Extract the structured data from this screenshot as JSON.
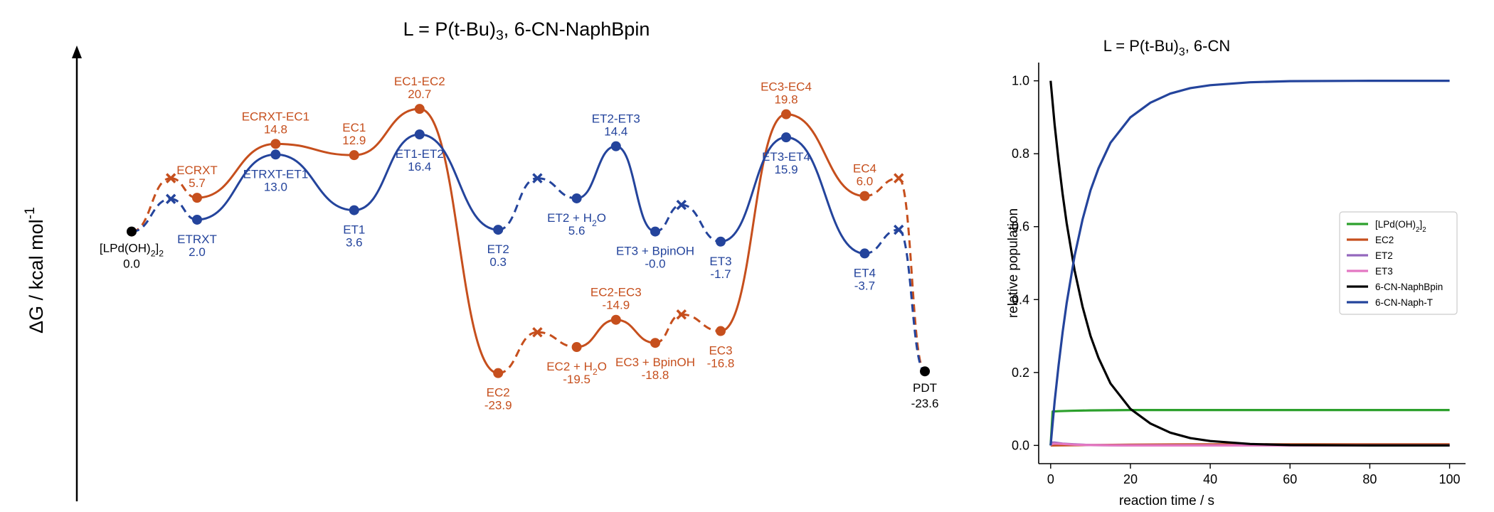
{
  "chart_data": [
    {
      "type": "line",
      "subtype": "energy-profile",
      "title": "L = P(t-Bu)3, 6-CN-NaphBpin",
      "title_parts": [
        "L = P(t-Bu)",
        "3",
        ", 6-CN-NaphBpin"
      ],
      "ylabel": "ΔG / kcal mol",
      "ylabel_sup": "-1",
      "ylim": [
        -35,
        30
      ],
      "x_axis_visible": false,
      "colors": {
        "EC": "#c64f1d",
        "ET": "#24449c",
        "common": "#000000"
      },
      "common_points": [
        {
          "x": 0,
          "y": 0.0,
          "label": "[LPd(OH)",
          "label_sub": "2",
          "label_tail": "]",
          "label_sub2": "2",
          "value_label": "0.0"
        },
        {
          "x": 30.3,
          "y": -23.6,
          "label": "PDT",
          "value_label": "-23.6"
        }
      ],
      "series": [
        {
          "name": "EC",
          "color": "#c64f1d",
          "states": [
            {
              "x": 2.5,
              "y": 5.7,
              "label": "ECRXT",
              "value_label": "5.7",
              "label_pos": "above"
            },
            {
              "x": 5.5,
              "y": 14.8,
              "label": "ECRXT-EC1",
              "value_label": "14.8",
              "label_pos": "above"
            },
            {
              "x": 8.5,
              "y": 12.9,
              "label": "EC1",
              "value_label": "12.9",
              "label_pos": "above"
            },
            {
              "x": 11.0,
              "y": 20.7,
              "label": "EC1-EC2",
              "value_label": "20.7",
              "label_pos": "above"
            },
            {
              "x": 14.0,
              "y": -23.9,
              "label": "EC2",
              "value_label": "-23.9",
              "label_pos": "below"
            },
            {
              "x": 17.0,
              "y": -19.5,
              "label": "EC2 + H",
              "label_sub": "2",
              "label_tail": "O",
              "value_label": "-19.5",
              "label_pos": "below"
            },
            {
              "x": 18.5,
              "y": -14.9,
              "label": "EC2-EC3",
              "value_label": "-14.9",
              "label_pos": "above"
            },
            {
              "x": 20.0,
              "y": -18.8,
              "label": "EC3 + BpinOH",
              "value_label": "-18.8",
              "label_pos": "below"
            },
            {
              "x": 22.5,
              "y": -16.8,
              "label": "EC3",
              "value_label": "-16.8",
              "label_pos": "below"
            },
            {
              "x": 25.0,
              "y": 19.8,
              "label": "EC3-EC4",
              "value_label": "19.8",
              "label_pos": "above"
            },
            {
              "x": 28.0,
              "y": 6.0,
              "label": "EC4",
              "value_label": "6.0",
              "label_pos": "above"
            }
          ],
          "crossings": [
            {
              "x": 1.5,
              "y": 9.0
            },
            {
              "x": 15.5,
              "y": -17.0
            },
            {
              "x": 21.0,
              "y": -14.0
            },
            {
              "x": 29.3,
              "y": 9.0
            }
          ]
        },
        {
          "name": "ET",
          "color": "#24449c",
          "states": [
            {
              "x": 2.5,
              "y": 2.0,
              "label": "ETRXT",
              "value_label": "2.0",
              "label_pos": "below"
            },
            {
              "x": 5.5,
              "y": 13.0,
              "label": "ETRXT-ET1",
              "value_label": "13.0",
              "label_pos": "below"
            },
            {
              "x": 8.5,
              "y": 3.6,
              "label": "ET1",
              "value_label": "3.6",
              "label_pos": "below"
            },
            {
              "x": 11.0,
              "y": 16.4,
              "label": "ET1-ET2",
              "value_label": "16.4",
              "label_pos": "below"
            },
            {
              "x": 14.0,
              "y": 0.3,
              "label": "ET2",
              "value_label": "0.3",
              "label_pos": "below"
            },
            {
              "x": 17.0,
              "y": 5.6,
              "label": "ET2 + H",
              "label_sub": "2",
              "label_tail": "O",
              "value_label": "5.6",
              "label_pos": "below"
            },
            {
              "x": 18.5,
              "y": 14.4,
              "label": "ET2-ET3",
              "value_label": "14.4",
              "label_pos": "above"
            },
            {
              "x": 20.0,
              "y": -0.0,
              "label": "ET3 + BpinOH",
              "value_label": "-0.0",
              "label_pos": "below"
            },
            {
              "x": 22.5,
              "y": -1.7,
              "label": "ET3",
              "value_label": "-1.7",
              "label_pos": "below"
            },
            {
              "x": 25.0,
              "y": 15.9,
              "label": "ET3-ET4",
              "value_label": "15.9",
              "label_pos": "below"
            },
            {
              "x": 28.0,
              "y": -3.7,
              "label": "ET4",
              "value_label": "-3.7",
              "label_pos": "below"
            }
          ],
          "crossings": [
            {
              "x": 1.5,
              "y": 5.5
            },
            {
              "x": 15.5,
              "y": 9.0
            },
            {
              "x": 21.0,
              "y": 4.5
            },
            {
              "x": 29.3,
              "y": 0.3
            }
          ]
        }
      ]
    },
    {
      "type": "line",
      "title": "L = P(t-Bu)3, 6-CN",
      "title_parts": [
        "L = P(t-Bu)",
        "3",
        ", 6-CN"
      ],
      "xlabel": "reaction time / s",
      "ylabel": "relative population",
      "xlim": [
        -3,
        104
      ],
      "ylim": [
        -0.05,
        1.05
      ],
      "x_ticks": [
        0,
        20,
        40,
        60,
        80,
        100
      ],
      "x_tick_labels": [
        "0",
        "20",
        "40",
        "60",
        "80",
        "100"
      ],
      "y_ticks": [
        0.0,
        0.2,
        0.4,
        0.6,
        0.8,
        1.0
      ],
      "y_tick_labels": [
        "0.0",
        "0.2",
        "0.4",
        "0.6",
        "0.8",
        "1.0"
      ],
      "legend_position": "center-right",
      "series": [
        {
          "name": "[LPd(OH)2]2",
          "name_parts": [
            "[LPd(OH)",
            "2",
            "]",
            "2"
          ],
          "color": "#2ca02c",
          "x": [
            0,
            0.5,
            2,
            5,
            10,
            20,
            40,
            60,
            80,
            100
          ],
          "y": [
            0.0,
            0.093,
            0.094,
            0.095,
            0.096,
            0.097,
            0.097,
            0.097,
            0.097,
            0.097
          ]
        },
        {
          "name": "EC2",
          "color": "#c64f1d",
          "x": [
            0,
            20,
            40,
            60,
            80,
            100
          ],
          "y": [
            0.0,
            0.002,
            0.003,
            0.003,
            0.003,
            0.003
          ]
        },
        {
          "name": "ET2",
          "color": "#9467bd",
          "x": [
            0,
            0.3,
            1,
            3,
            6,
            10,
            20,
            100
          ],
          "y": [
            0.0,
            0.008,
            0.008,
            0.005,
            0.003,
            0.001,
            0.0,
            0.0
          ]
        },
        {
          "name": "ET3",
          "color": "#e377c2",
          "x": [
            0,
            0.3,
            1,
            3,
            6,
            10,
            20,
            100
          ],
          "y": [
            0.0,
            0.004,
            0.005,
            0.004,
            0.002,
            0.001,
            0.0,
            0.0
          ]
        },
        {
          "name": "6-CN-NaphBpin",
          "color": "#000000",
          "x": [
            0,
            1,
            2,
            3,
            4,
            6,
            8,
            10,
            12,
            15,
            20,
            25,
            30,
            35,
            40,
            50,
            60,
            80,
            100
          ],
          "y": [
            1.0,
            0.88,
            0.78,
            0.69,
            0.61,
            0.48,
            0.38,
            0.3,
            0.24,
            0.17,
            0.1,
            0.06,
            0.035,
            0.02,
            0.012,
            0.004,
            0.001,
            0.0,
            0.0
          ]
        },
        {
          "name": "6-CN-Naph-T",
          "color": "#24449c",
          "x": [
            0,
            1,
            2,
            3,
            4,
            6,
            8,
            10,
            12,
            15,
            20,
            25,
            30,
            35,
            40,
            50,
            60,
            80,
            100
          ],
          "y": [
            0.0,
            0.12,
            0.22,
            0.31,
            0.39,
            0.52,
            0.62,
            0.7,
            0.76,
            0.83,
            0.9,
            0.94,
            0.965,
            0.98,
            0.988,
            0.996,
            0.999,
            1.0,
            1.0
          ]
        }
      ]
    }
  ]
}
